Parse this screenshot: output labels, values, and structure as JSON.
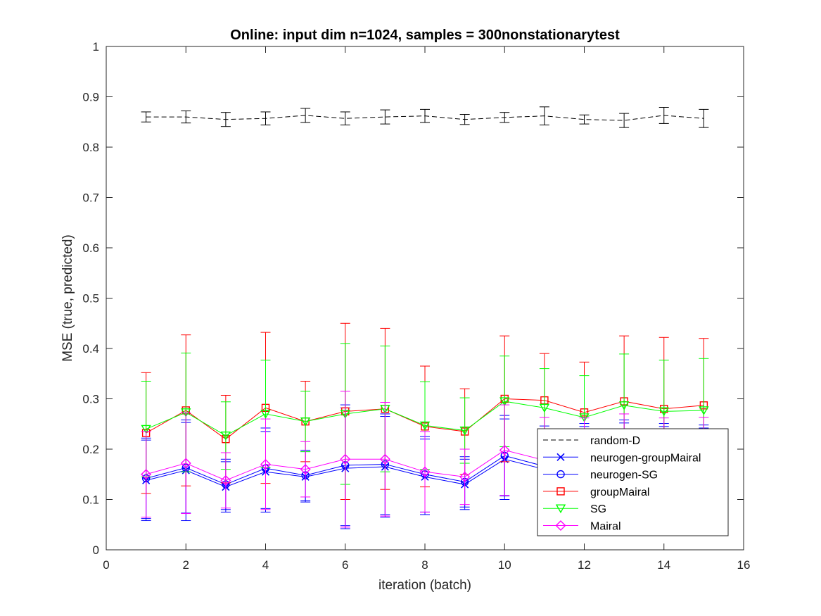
{
  "chart_data": {
    "type": "line",
    "title": "Online:  input dim n=1024, samples = 300nonstationarytest",
    "xlabel": "iteration (batch)",
    "ylabel": "MSE (true, predicted)",
    "xlim": [
      0,
      16
    ],
    "ylim": [
      0,
      1
    ],
    "xticks": [
      0,
      2,
      4,
      6,
      8,
      10,
      12,
      14,
      16
    ],
    "yticks": [
      0,
      0.1,
      0.2,
      0.3,
      0.4,
      0.5,
      0.6,
      0.7,
      0.8,
      0.9,
      1
    ],
    "xtick_labels": [
      "0",
      "2",
      "4",
      "6",
      "8",
      "10",
      "12",
      "14",
      "16"
    ],
    "ytick_labels": [
      "0",
      "0.1",
      "0.2",
      "0.3",
      "0.4",
      "0.5",
      "0.6",
      "0.7",
      "0.8",
      "0.9",
      "1"
    ],
    "grid": false,
    "legend_position": "bottom-right",
    "x": [
      1,
      2,
      3,
      4,
      5,
      6,
      7,
      8,
      9,
      10,
      11,
      12,
      13,
      14,
      15
    ],
    "series": [
      {
        "name": "random-D",
        "color": "#000000",
        "line_style": "dashed",
        "marker": "none",
        "values": [
          0.86,
          0.86,
          0.855,
          0.857,
          0.863,
          0.857,
          0.86,
          0.862,
          0.855,
          0.859,
          0.862,
          0.855,
          0.853,
          0.863,
          0.857
        ],
        "errors": [
          0.01,
          0.012,
          0.014,
          0.013,
          0.014,
          0.013,
          0.014,
          0.013,
          0.01,
          0.01,
          0.018,
          0.009,
          0.014,
          0.016,
          0.018
        ]
      },
      {
        "name": "neurogen-groupMairal",
        "color": "#0000ff",
        "line_style": "solid",
        "marker": "x",
        "values": [
          0.138,
          0.158,
          0.125,
          0.155,
          0.145,
          0.162,
          0.165,
          0.145,
          0.13,
          0.18,
          0.16,
          0.16,
          0.162,
          0.16,
          0.162
        ],
        "errors": [
          0.08,
          0.1,
          0.05,
          0.08,
          0.05,
          0.12,
          0.1,
          0.075,
          0.05,
          0.08,
          0.08,
          0.085,
          0.09,
          0.085,
          0.08
        ]
      },
      {
        "name": "neurogen-SG",
        "color": "#0000ff",
        "line_style": "solid",
        "marker": "circle",
        "values": [
          0.142,
          0.163,
          0.13,
          0.162,
          0.148,
          0.168,
          0.17,
          0.15,
          0.135,
          0.187,
          0.166,
          0.166,
          0.168,
          0.166,
          0.168
        ],
        "errors": [
          0.08,
          0.09,
          0.05,
          0.08,
          0.05,
          0.12,
          0.1,
          0.075,
          0.05,
          0.08,
          0.08,
          0.085,
          0.09,
          0.085,
          0.08
        ]
      },
      {
        "name": "groupMairal",
        "color": "#ff0000",
        "line_style": "solid",
        "marker": "square",
        "values": [
          0.232,
          0.277,
          0.22,
          0.282,
          0.255,
          0.275,
          0.28,
          0.245,
          0.235,
          0.3,
          0.297,
          0.273,
          0.295,
          0.28,
          0.287
        ],
        "errors": [
          0.12,
          0.15,
          0.087,
          0.15,
          0.08,
          0.175,
          0.16,
          0.12,
          0.085,
          0.125,
          0.093,
          0.1,
          0.13,
          0.142,
          0.133
        ]
      },
      {
        "name": "SG",
        "color": "#00ff00",
        "line_style": "solid",
        "marker": "triangle-down",
        "values": [
          0.24,
          0.273,
          0.227,
          0.27,
          0.255,
          0.27,
          0.28,
          0.247,
          0.237,
          0.295,
          0.282,
          0.263,
          0.287,
          0.275,
          0.277
        ],
        "errors": [
          0.095,
          0.118,
          0.067,
          0.107,
          0.06,
          0.14,
          0.125,
          0.087,
          0.065,
          0.09,
          0.078,
          0.083,
          0.102,
          0.102,
          0.103
        ]
      },
      {
        "name": "Mairal",
        "color": "#ff00ff",
        "line_style": "solid",
        "marker": "diamond",
        "values": [
          0.15,
          0.172,
          0.138,
          0.17,
          0.16,
          0.18,
          0.18,
          0.155,
          0.145,
          0.198,
          0.178,
          0.177,
          0.18,
          0.177,
          0.178
        ],
        "errors": [
          0.085,
          0.1,
          0.055,
          0.09,
          0.055,
          0.135,
          0.113,
          0.08,
          0.055,
          0.09,
          0.085,
          0.085,
          0.09,
          0.085,
          0.085
        ]
      }
    ]
  }
}
